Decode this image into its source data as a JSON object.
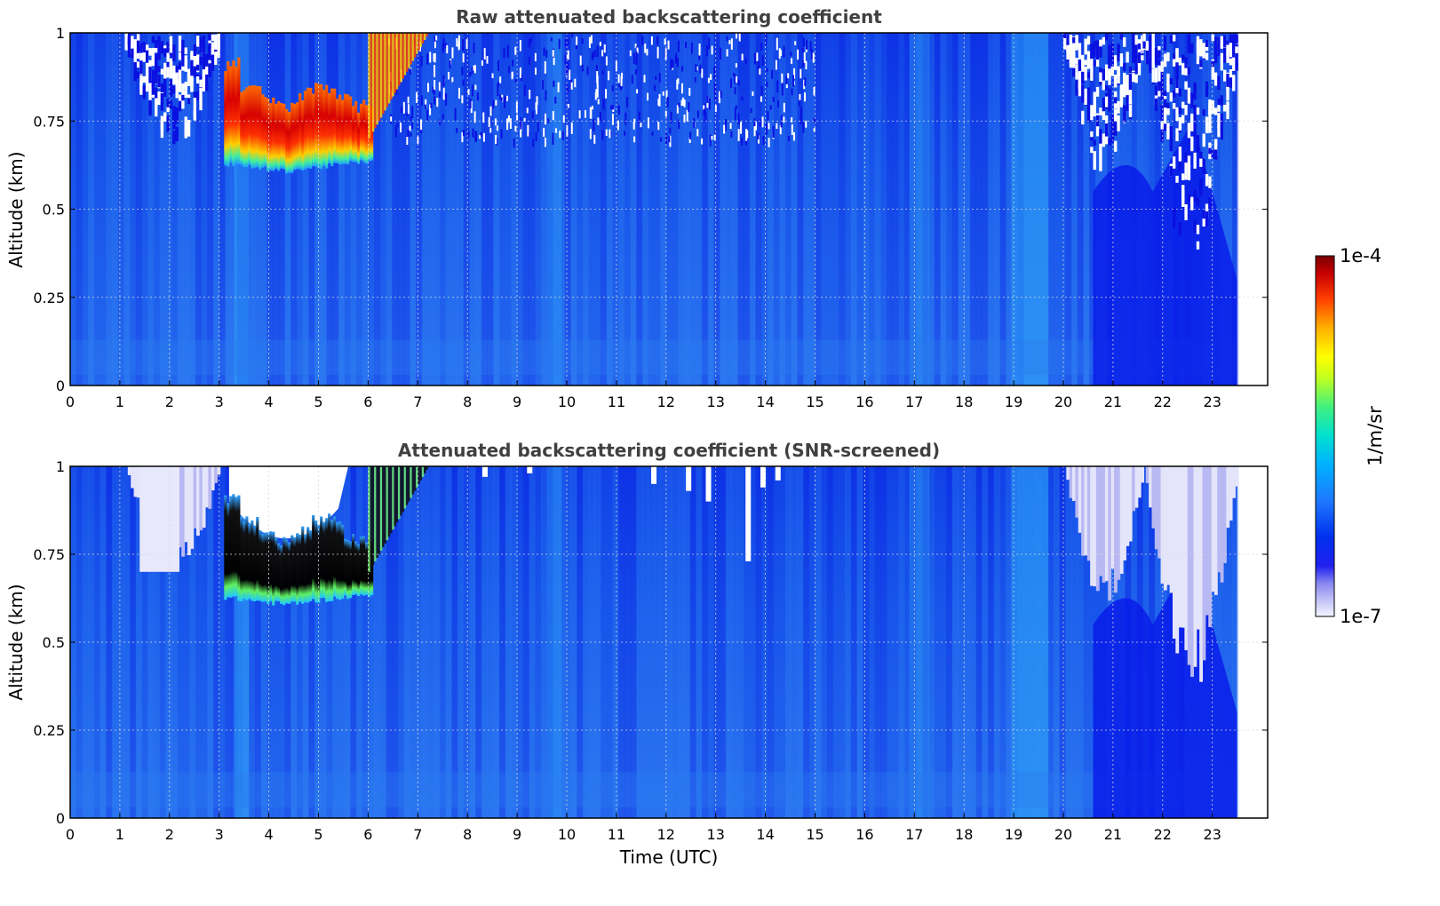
{
  "chart_data": [
    {
      "type": "heatmap",
      "title": "Raw attenuated backscattering coefficient",
      "xlabel": "",
      "ylabel": "Altitude (km)",
      "xlim": [
        0,
        24
      ],
      "ylim": [
        0,
        1
      ],
      "x_ticks": [
        "0",
        "1",
        "2",
        "3",
        "4",
        "5",
        "6",
        "7",
        "8",
        "9",
        "10",
        "11",
        "12",
        "13",
        "14",
        "15",
        "16",
        "17",
        "18",
        "19",
        "20",
        "21",
        "22",
        "23"
      ],
      "y_ticks": [
        "0",
        "0.25",
        "0.5",
        "0.75",
        "1"
      ],
      "y_tick_values": [
        0,
        0.25,
        0.5,
        0.75,
        1
      ],
      "data_end_time": 23.5,
      "grid": true,
      "screened": false,
      "features": {
        "cloud_layer": {
          "x_start": 3.1,
          "x_end": 6.1,
          "base_km": 0.6,
          "top_km": 0.8
        },
        "noisy_upper_region_times": [
          [
            1.1,
            3.0
          ],
          [
            6.4,
            15.0
          ],
          [
            20.0,
            23.5
          ]
        ],
        "surface_layer_km": 0.1
      }
    },
    {
      "type": "heatmap",
      "title": "Attenuated backscattering coefficient (SNR-screened)",
      "xlabel": "Time (UTC)",
      "ylabel": "Altitude (km)",
      "xlim": [
        0,
        24
      ],
      "ylim": [
        0,
        1
      ],
      "x_ticks": [
        "0",
        "1",
        "2",
        "3",
        "4",
        "5",
        "6",
        "7",
        "8",
        "9",
        "10",
        "11",
        "12",
        "13",
        "14",
        "15",
        "16",
        "17",
        "18",
        "19",
        "20",
        "21",
        "22",
        "23"
      ],
      "y_ticks": [
        "0",
        "0.25",
        "0.5",
        "0.75",
        "1"
      ],
      "y_tick_values": [
        0,
        0.25,
        0.5,
        0.75,
        1
      ],
      "data_end_time": 23.5,
      "grid": true,
      "screened": true,
      "features": {
        "cloud_layer": {
          "x_start": 3.1,
          "x_end": 6.1,
          "base_km": 0.6,
          "top_km": 0.8
        },
        "screened_out_region": {
          "x_start": 3.2,
          "x_end": 5.4,
          "above_km": 0.82
        },
        "surface_layer_km": 0.1
      }
    }
  ],
  "colorbar": {
    "label": "1/m/sr",
    "max_label": "1e-4",
    "min_label": "1e-7",
    "scale": "log",
    "colormap": [
      "#ffffff",
      "#c8c8f8",
      "#8a8af0",
      "#2020f0",
      "#0000e0",
      "#0040ff",
      "#1e78ff",
      "#00c8ff",
      "#00e8a0",
      "#80ff60",
      "#ffff00",
      "#ffa000",
      "#ff3000",
      "#c00000",
      "#800000"
    ]
  },
  "colors": {
    "background_field": "#1f5fe8",
    "surface_layer": "#2a7cf0",
    "bright_column": "#2e9bf5",
    "dark_blue": "#0a1ee6",
    "screened_white": "#ffffff",
    "grid": "#d0d0d0"
  }
}
